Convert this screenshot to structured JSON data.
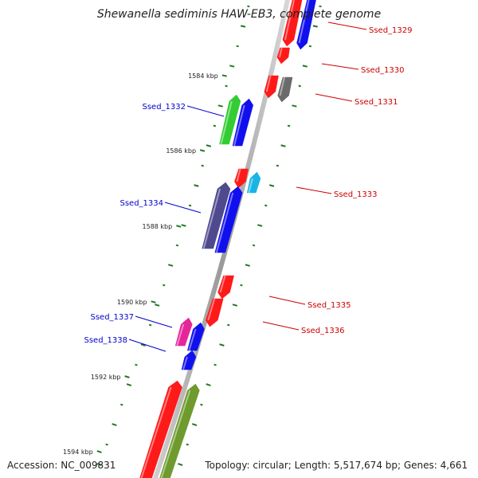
{
  "title": "Shewanella sediminis HAW-EB3, complete genome",
  "accession": "Accession: NC_009831",
  "summary": "Topology: circular; Length: 5,517,674 bp; Genes: 4,661",
  "colors": {
    "backbone": "#9a9a9a",
    "tick": "#1f7a1f",
    "red": "#ff1a1a",
    "blue": "#1010ee",
    "green": "#33cc33",
    "gray": "#6b6b6b",
    "cyan": "#19b4e6",
    "indigo": "#4f4a8e",
    "magenta": "#e6259a",
    "olive": "#6f9a2e",
    "label_forward": "#0000cc",
    "label_reverse": "#cc0000"
  },
  "scale_labels": [
    "1584 kbp",
    "1586 kbp",
    "1588 kbp",
    "1590 kbp",
    "1592 kbp",
    "1594 kbp"
  ],
  "gene_labels": [
    {
      "id": "Ssed_1329",
      "strand": "reverse"
    },
    {
      "id": "Ssed_1330",
      "strand": "reverse"
    },
    {
      "id": "Ssed_1331",
      "strand": "reverse"
    },
    {
      "id": "Ssed_1332",
      "strand": "forward"
    },
    {
      "id": "Ssed_1333",
      "strand": "reverse"
    },
    {
      "id": "Ssed_1334",
      "strand": "forward"
    },
    {
      "id": "Ssed_1335",
      "strand": "reverse"
    },
    {
      "id": "Ssed_1336",
      "strand": "reverse"
    },
    {
      "id": "Ssed_1337",
      "strand": "forward"
    },
    {
      "id": "Ssed_1338",
      "strand": "forward"
    }
  ]
}
